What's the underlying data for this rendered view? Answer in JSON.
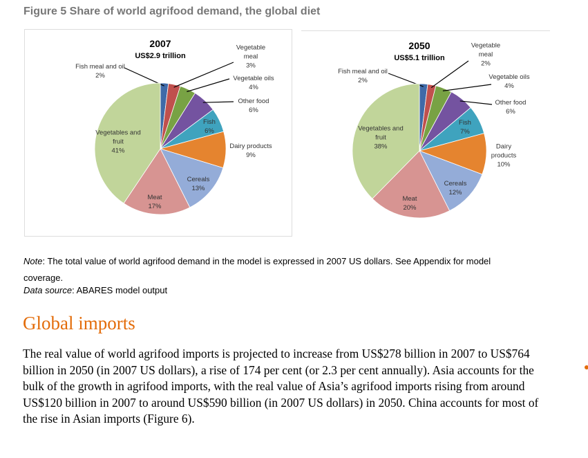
{
  "figure_title": "Figure 5 Share of world agrifood demand, the global diet",
  "chart_data": [
    {
      "type": "pie",
      "title": "2007",
      "subtitle": "US$2.9 trillion",
      "categories": [
        "Fish meal and oil",
        "Vegetable meal",
        "Vegetable oils",
        "Other food",
        "Fish",
        "Dairy products",
        "Cereals",
        "Meat",
        "Vegetables and fruit"
      ],
      "values": [
        2,
        3,
        4,
        6,
        6,
        9,
        13,
        17,
        41
      ],
      "value_labels": [
        "2%",
        "3%",
        "4%",
        "6%",
        "6%",
        "9%",
        "13%",
        "17%",
        "41%"
      ],
      "colors": [
        "#3f6aa8",
        "#c0504d",
        "#78a244",
        "#7453a0",
        "#3fa3be",
        "#e5842f",
        "#94acd8",
        "#d79492",
        "#c1d59a"
      ]
    },
    {
      "type": "pie",
      "title": "2050",
      "subtitle": "US$5.1 trillion",
      "categories": [
        "Fish meal and oil",
        "Vegetable meal",
        "Vegetable oils",
        "Other food",
        "Fish",
        "Dairy products",
        "Cereals",
        "Meat",
        "Vegetables and fruit"
      ],
      "values": [
        2,
        2,
        4,
        6,
        7,
        10,
        12,
        20,
        38
      ],
      "value_labels": [
        "2%",
        "2%",
        "4%",
        "6%",
        "7%",
        "10%",
        "12%",
        "20%",
        "38%"
      ],
      "colors": [
        "#3f6aa8",
        "#c0504d",
        "#78a244",
        "#7453a0",
        "#3fa3be",
        "#e5842f",
        "#94acd8",
        "#d79492",
        "#c1d59a"
      ]
    }
  ],
  "note": {
    "label": "Note",
    "text": ": The total value of world agrifood demand in the model is expressed in 2007 US dollars. See Appendix for model coverage."
  },
  "data_source": {
    "label": "Data source",
    "text": ": ABARES model output"
  },
  "section": {
    "heading": "Global imports",
    "body": "The real value of world agrifood imports is projected to increase from US$278 billion in 2007 to US$764 billion in 2050 (in 2007 US dollars), a rise of 174 per cent (or 2.3 per cent annually). Asia accounts for the bulk of the growth in agrifood imports, with the real value of Asia’s agrifood imports rising from around US$120 billion in 2007 to around US$590 billion (in 2007 US dollars) in 2050. China accounts for most of the rise in Asian imports (Figure 6)."
  }
}
